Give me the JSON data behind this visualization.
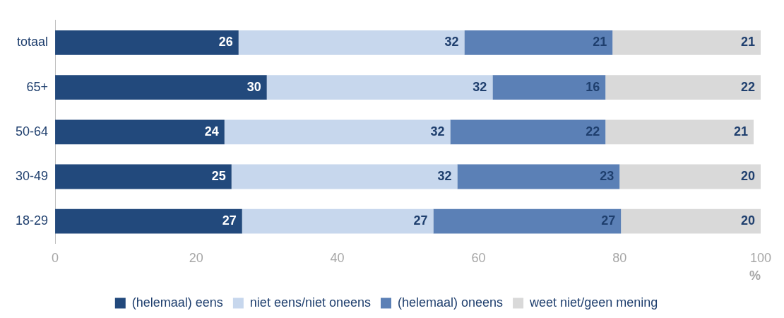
{
  "chart_data": {
    "type": "bar",
    "orientation": "horizontal",
    "stacked": true,
    "xlabel": "%",
    "categories": [
      "totaal",
      "65+",
      "50-64",
      "30-49",
      "18-29"
    ],
    "series": [
      {
        "name": "(helemaal) eens",
        "color": "#22497c",
        "values": [
          26,
          30,
          24,
          25,
          26.5
        ],
        "value_labels": [
          "26",
          "30",
          "24",
          "25",
          "27"
        ]
      },
      {
        "name": "niet eens/niet oneens",
        "color": "#c7d7ed",
        "values": [
          32,
          32,
          32,
          32,
          27.1
        ],
        "value_labels": [
          "32",
          "32",
          "32",
          "32",
          "27"
        ]
      },
      {
        "name": "(helemaal) oneens",
        "color": "#5b80b6",
        "values": [
          21,
          16,
          22,
          23,
          26.6
        ],
        "value_labels": [
          "21",
          "16",
          "22",
          "23",
          "27"
        ]
      },
      {
        "name": "weet niet/geen mening",
        "color": "#d9d9d9",
        "values": [
          21,
          22,
          21,
          20,
          19.8
        ],
        "value_labels": [
          "21",
          "22",
          "21",
          "20",
          "20"
        ]
      }
    ],
    "xlim": [
      0,
      100
    ],
    "xticks": [
      0,
      20,
      40,
      60,
      80,
      100
    ],
    "grid": false,
    "legend": "bottom"
  }
}
